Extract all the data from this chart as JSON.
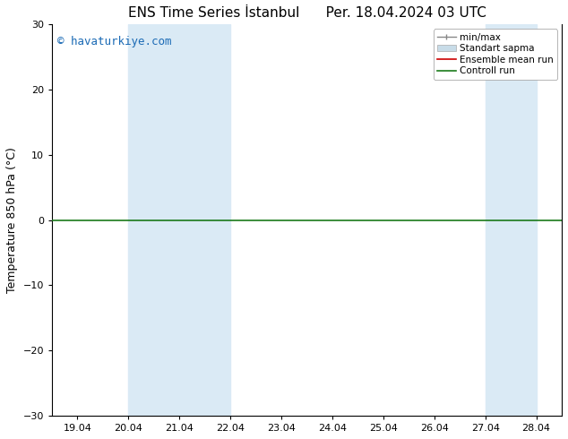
{
  "title": "ENS Time Series İstanbul",
  "title2": "Per. 18.04.2024 03 UTC",
  "ylabel": "Temperature 850 hPa (°C)",
  "watermark": "© havaturkiye.com",
  "ylim": [
    -30,
    30
  ],
  "yticks": [
    -30,
    -20,
    -10,
    0,
    10,
    20,
    30
  ],
  "xtick_labels": [
    "19.04",
    "20.04",
    "21.04",
    "22.04",
    "23.04",
    "24.04",
    "25.04",
    "26.04",
    "27.04",
    "28.04"
  ],
  "num_xticks": 10,
  "xlim_min": 0,
  "xlim_max": 9,
  "shaded_regions": [
    {
      "x_start": 1.0,
      "x_end": 3.0,
      "color": "#daeaf5"
    },
    {
      "x_start": 8.0,
      "x_end": 9.0,
      "color": "#daeaf5"
    }
  ],
  "hline_y": 0,
  "hline_color": "#1a7a1a",
  "hline_linewidth": 1.2,
  "ensemble_mean_color": "#cc0000",
  "control_run_color": "#1a7a1a",
  "min_max_color": "#888888",
  "std_dev_color": "#c8dce8",
  "watermark_color": "#1a6ab5",
  "watermark_fontsize": 9,
  "title_fontsize": 11,
  "legend_fontsize": 7.5,
  "ylabel_fontsize": 9,
  "tick_labelsize": 8,
  "bg_color": "#ffffff",
  "plot_bg_color": "#ffffff",
  "spine_color": "#000000"
}
